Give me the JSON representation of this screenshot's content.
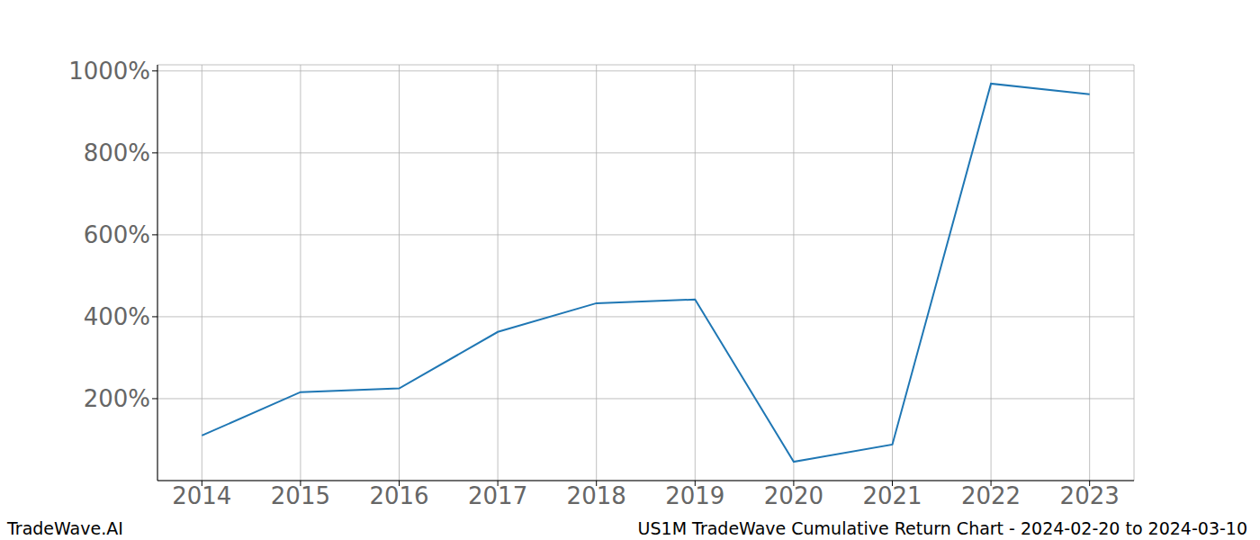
{
  "chart_data": {
    "type": "line",
    "x": [
      2014,
      2015,
      2016,
      2017,
      2018,
      2019,
      2020,
      2021,
      2022,
      2023
    ],
    "values": [
      110,
      216,
      225,
      363,
      433,
      442,
      46,
      88,
      969,
      943
    ],
    "color": "#1f77b4",
    "xlim": [
      2013.55,
      2023.45
    ],
    "xticks": [
      2014,
      2015,
      2016,
      2017,
      2018,
      2019,
      2020,
      2021,
      2022,
      2023
    ],
    "ylim": [
      0,
      1015
    ],
    "yticks": [
      {
        "value": 200,
        "label": "200%"
      },
      {
        "value": 400,
        "label": "400%"
      },
      {
        "value": 600,
        "label": "600%"
      },
      {
        "value": 800,
        "label": "800%"
      },
      {
        "value": 1000,
        "label": "1000%"
      }
    ],
    "grid": true,
    "footer_left": "TradeWave.AI",
    "footer_right": "US1M TradeWave Cumulative Return Chart - 2024-02-20 to 2024-03-10"
  }
}
